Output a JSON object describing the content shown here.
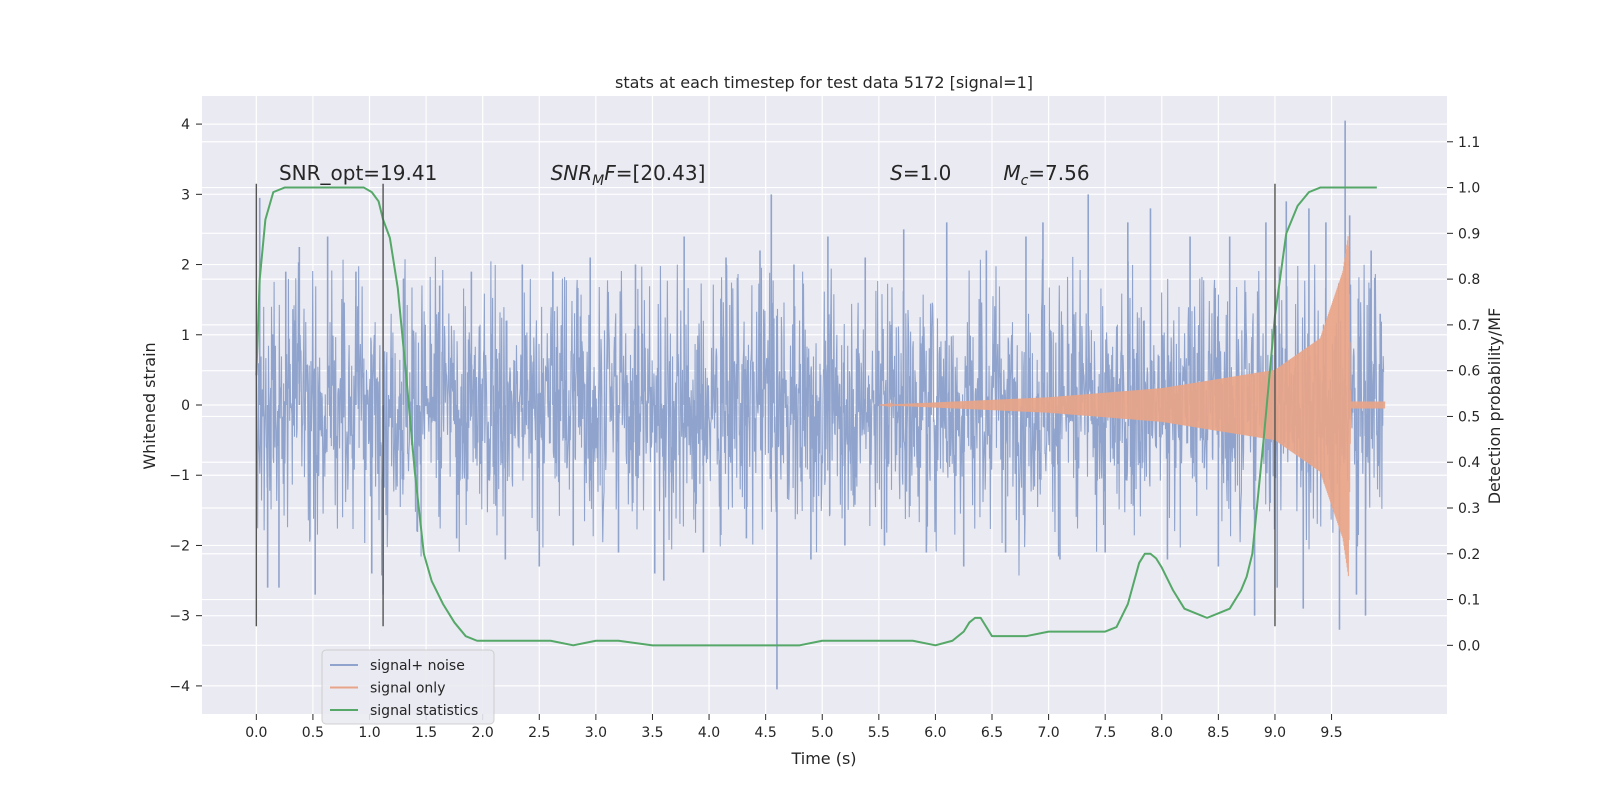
{
  "chart_data": {
    "type": "line",
    "title": "stats at each timestep for test data 5172 [signal=1]",
    "xlabel": "Time (s)",
    "ylabel": "Whitened strain",
    "y2label": "Detection probability/MF",
    "xlim": [
      -0.48,
      10.52
    ],
    "ylim": [
      -4.4,
      4.4
    ],
    "y2lim": [
      -0.15,
      1.2
    ],
    "x_ticks": [
      0.0,
      0.5,
      1.0,
      1.5,
      2.0,
      2.5,
      3.0,
      3.5,
      4.0,
      4.5,
      5.0,
      5.5,
      6.0,
      6.5,
      7.0,
      7.5,
      8.0,
      8.5,
      9.0,
      9.5
    ],
    "x_tick_labels": [
      "0.0",
      "0.5",
      "1.0",
      "1.5",
      "2.0",
      "2.5",
      "3.0",
      "3.5",
      "4.0",
      "4.5",
      "5.0",
      "5.5",
      "6.0",
      "6.5",
      "7.0",
      "7.5",
      "8.0",
      "8.5",
      "9.0",
      "9.5"
    ],
    "y_ticks": [
      4,
      3,
      2,
      1,
      0,
      -1,
      -2,
      -3,
      -4
    ],
    "y_tick_labels": [
      "4",
      "3",
      "2",
      "1",
      "0",
      "−1",
      "−2",
      "−3",
      "−4"
    ],
    "y2_ticks": [
      1.1,
      1.0,
      0.9,
      0.8,
      0.7,
      0.6,
      0.5,
      0.4,
      0.3,
      0.2,
      0.1,
      0.0
    ],
    "y2_tick_labels": [
      "1.1",
      "1.0",
      "0.9",
      "0.8",
      "0.7",
      "0.6",
      "0.5",
      "0.4",
      "0.3",
      "0.2",
      "0.1",
      "0.0"
    ],
    "grid": true,
    "legend_position": "lower-left",
    "series": [
      {
        "name": "signal+ noise",
        "color": "#8fa3cc",
        "kind": "noise",
        "time_range": [
          0.0,
          9.96
        ],
        "core_envelope": [
          [
            0.0,
            1.3
          ],
          [
            9.96,
            1.3
          ]
        ],
        "envelope_range": [
          -3.2,
          3.0
        ],
        "spikes": [
          [
            0.03,
            2.95
          ],
          [
            0.1,
            -2.6
          ],
          [
            0.2,
            -2.6
          ],
          [
            0.26,
            1.9
          ],
          [
            0.38,
            2.25
          ],
          [
            0.52,
            -2.7
          ],
          [
            0.63,
            2.4
          ],
          [
            0.88,
            1.9
          ],
          [
            1.02,
            -2.4
          ],
          [
            1.12,
            -2.7
          ],
          [
            1.3,
            1.8
          ],
          [
            1.42,
            -1.8
          ],
          [
            1.62,
            1.7
          ],
          [
            1.77,
            -1.9
          ],
          [
            1.9,
            1.9
          ],
          [
            2.2,
            -2.2
          ],
          [
            2.35,
            2.0
          ],
          [
            2.5,
            -2.3
          ],
          [
            2.62,
            1.9
          ],
          [
            2.8,
            -2.0
          ],
          [
            2.95,
            2.1
          ],
          [
            3.2,
            -2.1
          ],
          [
            3.35,
            2.0
          ],
          [
            3.52,
            -2.4
          ],
          [
            3.6,
            -2.5
          ],
          [
            3.78,
            2.4
          ],
          [
            3.95,
            -2.1
          ],
          [
            4.15,
            2.1
          ],
          [
            4.33,
            -1.9
          ],
          [
            4.45,
            2.2
          ],
          [
            4.55,
            3.0
          ],
          [
            4.6,
            -4.05
          ],
          [
            4.75,
            2.0
          ],
          [
            4.9,
            -2.2
          ],
          [
            5.05,
            2.4
          ],
          [
            5.2,
            -2.0
          ],
          [
            5.38,
            2.1
          ],
          [
            5.55,
            -2.0
          ],
          [
            5.72,
            2.5
          ],
          [
            5.92,
            -2.1
          ],
          [
            6.1,
            2.6
          ],
          [
            6.25,
            -2.3
          ],
          [
            6.45,
            2.2
          ],
          [
            6.62,
            -2.1
          ],
          [
            6.8,
            2.4
          ],
          [
            6.95,
            2.6
          ],
          [
            7.1,
            -2.2
          ],
          [
            7.35,
            3.0
          ],
          [
            7.5,
            -2.1
          ],
          [
            7.7,
            2.6
          ],
          [
            7.9,
            2.8
          ],
          [
            8.05,
            -2.2
          ],
          [
            8.25,
            2.4
          ],
          [
            8.5,
            -2.3
          ],
          [
            8.6,
            2.4
          ],
          [
            8.82,
            -3.0
          ],
          [
            8.92,
            2.6
          ],
          [
            9.02,
            -2.6
          ],
          [
            9.1,
            2.9
          ],
          [
            9.25,
            -2.9
          ],
          [
            9.3,
            2.8
          ],
          [
            9.45,
            2.6
          ],
          [
            9.57,
            -3.2
          ],
          [
            9.62,
            4.05
          ],
          [
            9.66,
            2.7
          ],
          [
            9.72,
            -2.7
          ],
          [
            9.8,
            -3.0
          ],
          [
            9.85,
            2.2
          ],
          [
            9.93,
            1.3
          ]
        ]
      },
      {
        "name": "signal only",
        "color": "#e8a488",
        "kind": "chirp",
        "start": 5.5,
        "peak": 9.65,
        "end": 9.97,
        "amplitude": [
          [
            5.5,
            0.0
          ],
          [
            7.0,
            0.11
          ],
          [
            8.0,
            0.24
          ],
          [
            9.0,
            0.5
          ],
          [
            9.4,
            0.95
          ],
          [
            9.6,
            1.9
          ],
          [
            9.65,
            2.45
          ],
          [
            9.67,
            0.0
          ]
        ],
        "post_ringdown": 0.05
      },
      {
        "name": "signal statistics",
        "color": "#55a868",
        "kind": "line",
        "axis": "right",
        "x": [
          0.0,
          0.03,
          0.08,
          0.15,
          0.25,
          0.4,
          0.6,
          0.8,
          0.95,
          1.02,
          1.08,
          1.12,
          1.18,
          1.25,
          1.32,
          1.4,
          1.48,
          1.55,
          1.65,
          1.75,
          1.85,
          1.95,
          2.05,
          2.2,
          2.4,
          2.6,
          2.8,
          3.0,
          3.2,
          3.5,
          4.0,
          4.5,
          4.8,
          5.0,
          5.2,
          5.5,
          5.8,
          6.0,
          6.15,
          6.25,
          6.3,
          6.35,
          6.4,
          6.45,
          6.5,
          6.6,
          6.7,
          6.8,
          7.0,
          7.2,
          7.4,
          7.5,
          7.6,
          7.7,
          7.8,
          7.85,
          7.9,
          7.95,
          8.0,
          8.1,
          8.2,
          8.3,
          8.4,
          8.5,
          8.6,
          8.7,
          8.75,
          8.8,
          8.9,
          9.0,
          9.1,
          9.2,
          9.3,
          9.4,
          9.5,
          9.6,
          9.7,
          9.8,
          9.9
        ],
        "values": [
          0.59,
          0.8,
          0.93,
          0.99,
          1.0,
          1.0,
          1.0,
          1.0,
          1.0,
          0.99,
          0.97,
          0.93,
          0.89,
          0.78,
          0.6,
          0.38,
          0.2,
          0.14,
          0.09,
          0.05,
          0.02,
          0.01,
          0.01,
          0.01,
          0.01,
          0.01,
          0.0,
          0.01,
          0.01,
          0.0,
          0.0,
          0.0,
          0.0,
          0.01,
          0.01,
          0.01,
          0.01,
          0.0,
          0.01,
          0.03,
          0.05,
          0.06,
          0.06,
          0.04,
          0.02,
          0.02,
          0.02,
          0.02,
          0.03,
          0.03,
          0.03,
          0.03,
          0.04,
          0.09,
          0.18,
          0.2,
          0.2,
          0.19,
          0.17,
          0.12,
          0.08,
          0.07,
          0.06,
          0.07,
          0.08,
          0.12,
          0.15,
          0.2,
          0.45,
          0.72,
          0.9,
          0.96,
          0.99,
          1.0,
          1.0,
          1.0,
          1.0,
          1.0,
          1.0
        ]
      }
    ],
    "vertical_lines": [
      {
        "x": 0.0,
        "range": [
          -3.15,
          3.15
        ]
      },
      {
        "x": 1.12,
        "range": [
          -3.15,
          3.15
        ]
      },
      {
        "x": 9.0,
        "range": [
          -3.15,
          3.15
        ]
      }
    ],
    "annotations": [
      {
        "text": "SNR_opt=19.41",
        "x": 0.2,
        "y": 3.15
      },
      {
        "text": "SNRMF=[20.43]",
        "x": 2.6,
        "y": 3.15,
        "math": "snr_mf"
      },
      {
        "text": "S=1.0",
        "x": 5.6,
        "y": 3.15,
        "math": "s"
      },
      {
        "text": "Mc=7.56",
        "x": 6.6,
        "y": 3.15,
        "math": "mc"
      }
    ]
  }
}
